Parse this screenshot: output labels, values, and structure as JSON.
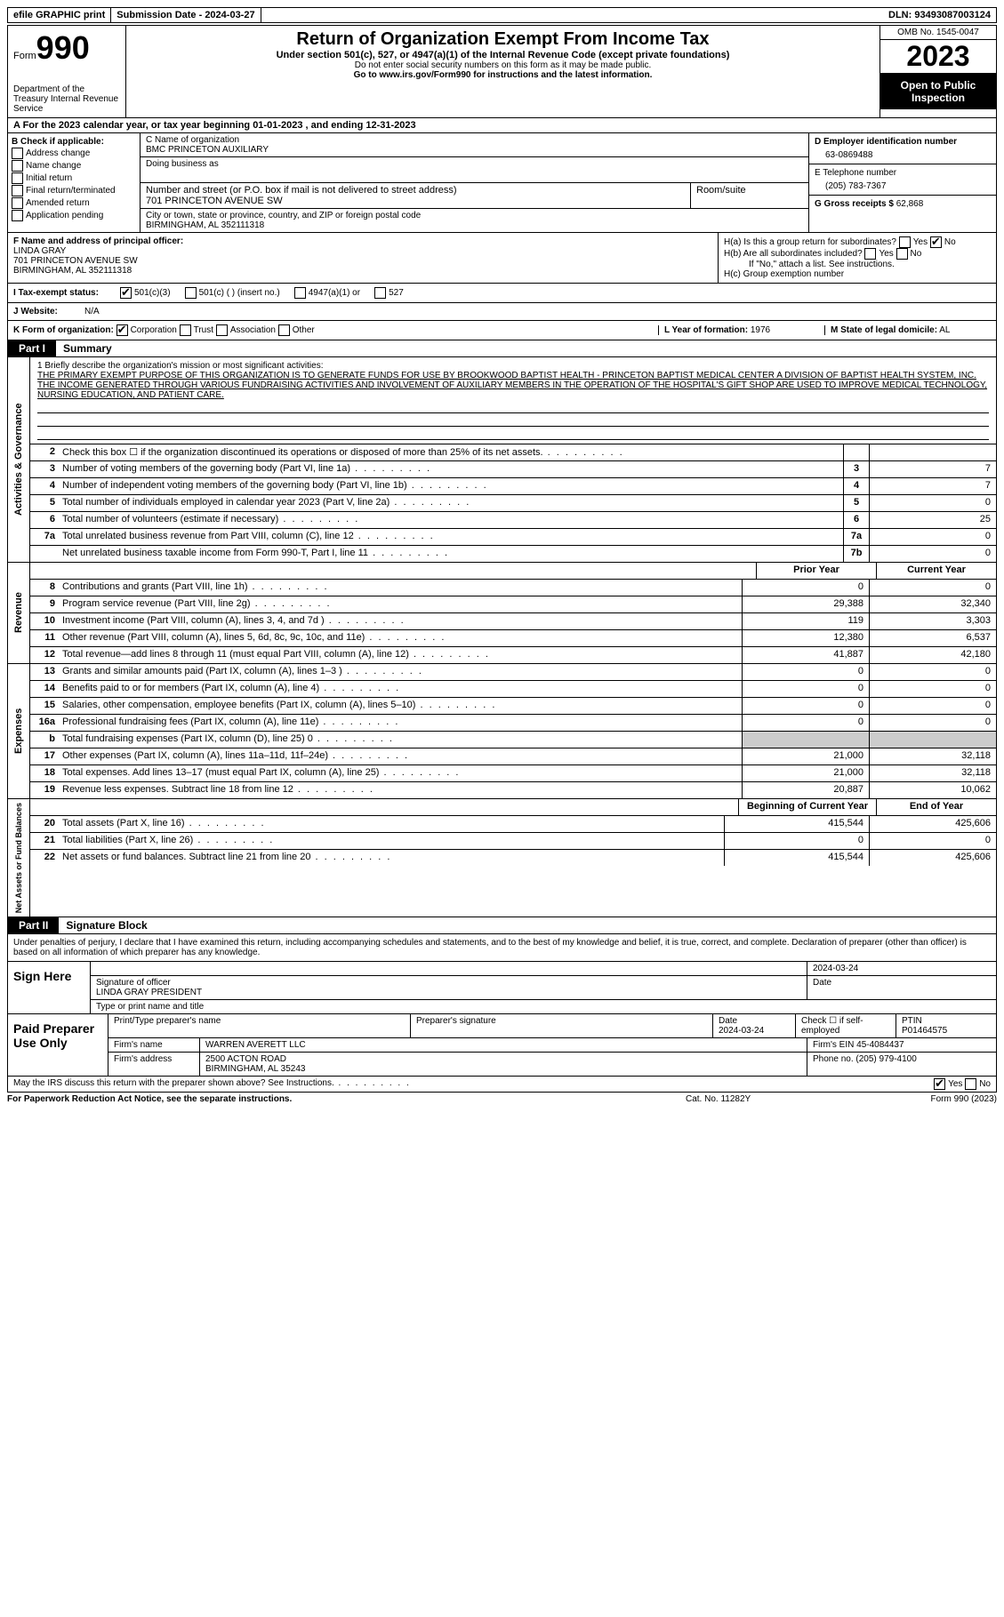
{
  "top": {
    "efile": "efile GRAPHIC print",
    "submission": "Submission Date - 2024-03-27",
    "dln": "DLN: 93493087003124"
  },
  "header": {
    "form_label": "Form",
    "form_num": "990",
    "dept": "Department of the Treasury\nInternal Revenue Service",
    "title": "Return of Organization Exempt From Income Tax",
    "sub": "Under section 501(c), 527, or 4947(a)(1) of the Internal Revenue Code (except private foundations)",
    "ssn": "Do not enter social security numbers on this form as it may be made public.",
    "goto": "Go to www.irs.gov/Form990 for instructions and the latest information.",
    "omb": "OMB No. 1545-0047",
    "year": "2023",
    "open": "Open to Public Inspection"
  },
  "A": "A For the 2023 calendar year, or tax year beginning 01-01-2023   , and ending 12-31-2023",
  "B": {
    "title": "B Check if applicable:",
    "items": [
      "Address change",
      "Name change",
      "Initial return",
      "Final return/terminated",
      "Amended return",
      "Application pending"
    ]
  },
  "C": {
    "name_label": "C Name of organization",
    "name": "BMC PRINCETON AUXILIARY",
    "dba_label": "Doing business as",
    "street_label": "Number and street (or P.O. box if mail is not delivered to street address)",
    "room_label": "Room/suite",
    "street": "701 PRINCETON AVENUE SW",
    "city_label": "City or town, state or province, country, and ZIP or foreign postal code",
    "city": "BIRMINGHAM, AL  352111318"
  },
  "D": {
    "label": "D Employer identification number",
    "value": "63-0869488"
  },
  "E": {
    "label": "E Telephone number",
    "value": "(205) 783-7367"
  },
  "G": {
    "label": "G Gross receipts $",
    "value": "62,868"
  },
  "F": {
    "label": "F  Name and address of principal officer:",
    "name": "LINDA GRAY",
    "street": "701 PRINCETON AVENUE SW",
    "city": "BIRMINGHAM, AL  352111318"
  },
  "H": {
    "a": "H(a)  Is this a group return for subordinates?",
    "b": "H(b)  Are all subordinates included?",
    "b2": "If \"No,\" attach a list. See instructions.",
    "c": "H(c)  Group exemption number"
  },
  "I": {
    "label": "I    Tax-exempt status:",
    "opts": [
      "501(c)(3)",
      "501(c) (  ) (insert no.)",
      "4947(a)(1) or",
      "527"
    ]
  },
  "J": {
    "label": "J    Website:",
    "value": "N/A"
  },
  "K": {
    "label": "K Form of organization:",
    "opts": [
      "Corporation",
      "Trust",
      "Association",
      "Other"
    ]
  },
  "L": {
    "label": "L Year of formation:",
    "value": "1976"
  },
  "M": {
    "label": "M State of legal domicile:",
    "value": "AL"
  },
  "part1": {
    "label": "Part I",
    "title": "Summary"
  },
  "mission": {
    "intro": "1    Briefly describe the organization's mission or most significant activities:",
    "text": "THE PRIMARY EXEMPT PURPOSE OF THIS ORGANIZATION IS TO GENERATE FUNDS FOR USE BY BROOKWOOD BAPTIST HEALTH - PRINCETON BAPTIST MEDICAL CENTER A DIVISION OF BAPTIST HEALTH SYSTEM, INC. THE INCOME GENERATED THROUGH VARIOUS FUNDRAISING ACTIVITIES AND INVOLVEMENT OF AUXILIARY MEMBERS IN THE OPERATION OF THE HOSPITAL'S GIFT SHOP ARE USED TO IMPROVE MEDICAL TECHNOLOGY, NURSING EDUCATION, AND PATIENT CARE."
  },
  "gov_lines": [
    {
      "n": "2",
      "d": "Check this box ☐  if the organization discontinued its operations or disposed of more than 25% of its net assets.",
      "b": "",
      "v": ""
    },
    {
      "n": "3",
      "d": "Number of voting members of the governing body (Part VI, line 1a)",
      "b": "3",
      "v": "7"
    },
    {
      "n": "4",
      "d": "Number of independent voting members of the governing body (Part VI, line 1b)",
      "b": "4",
      "v": "7"
    },
    {
      "n": "5",
      "d": "Total number of individuals employed in calendar year 2023 (Part V, line 2a)",
      "b": "5",
      "v": "0"
    },
    {
      "n": "6",
      "d": "Total number of volunteers (estimate if necessary)",
      "b": "6",
      "v": "25"
    },
    {
      "n": "7a",
      "d": "Total unrelated business revenue from Part VIII, column (C), line 12",
      "b": "7a",
      "v": "0"
    },
    {
      "n": "",
      "d": "Net unrelated business taxable income from Form 990-T, Part I, line 11",
      "b": "7b",
      "v": "0"
    }
  ],
  "col_headers": {
    "prior": "Prior Year",
    "current": "Current Year",
    "boy": "Beginning of Current Year",
    "eoy": "End of Year"
  },
  "rev_lines": [
    {
      "n": "8",
      "d": "Contributions and grants (Part VIII, line 1h)",
      "p": "0",
      "c": "0"
    },
    {
      "n": "9",
      "d": "Program service revenue (Part VIII, line 2g)",
      "p": "29,388",
      "c": "32,340"
    },
    {
      "n": "10",
      "d": "Investment income (Part VIII, column (A), lines 3, 4, and 7d )",
      "p": "119",
      "c": "3,303"
    },
    {
      "n": "11",
      "d": "Other revenue (Part VIII, column (A), lines 5, 6d, 8c, 9c, 10c, and 11e)",
      "p": "12,380",
      "c": "6,537"
    },
    {
      "n": "12",
      "d": "Total revenue—add lines 8 through 11 (must equal Part VIII, column (A), line 12)",
      "p": "41,887",
      "c": "42,180"
    }
  ],
  "exp_lines": [
    {
      "n": "13",
      "d": "Grants and similar amounts paid (Part IX, column (A), lines 1–3 )",
      "p": "0",
      "c": "0"
    },
    {
      "n": "14",
      "d": "Benefits paid to or for members (Part IX, column (A), line 4)",
      "p": "0",
      "c": "0"
    },
    {
      "n": "15",
      "d": "Salaries, other compensation, employee benefits (Part IX, column (A), lines 5–10)",
      "p": "0",
      "c": "0"
    },
    {
      "n": "16a",
      "d": "Professional fundraising fees (Part IX, column (A), line 11e)",
      "p": "0",
      "c": "0"
    },
    {
      "n": "b",
      "d": "Total fundraising expenses (Part IX, column (D), line 25) 0",
      "p": "grey",
      "c": "grey"
    },
    {
      "n": "17",
      "d": "Other expenses (Part IX, column (A), lines 11a–11d, 11f–24e)",
      "p": "21,000",
      "c": "32,118"
    },
    {
      "n": "18",
      "d": "Total expenses. Add lines 13–17 (must equal Part IX, column (A), line 25)",
      "p": "21,000",
      "c": "32,118"
    },
    {
      "n": "19",
      "d": "Revenue less expenses. Subtract line 18 from line 12",
      "p": "20,887",
      "c": "10,062"
    }
  ],
  "na_lines": [
    {
      "n": "20",
      "d": "Total assets (Part X, line 16)",
      "p": "415,544",
      "c": "425,606"
    },
    {
      "n": "21",
      "d": "Total liabilities (Part X, line 26)",
      "p": "0",
      "c": "0"
    },
    {
      "n": "22",
      "d": "Net assets or fund balances. Subtract line 21 from line 20",
      "p": "415,544",
      "c": "425,606"
    }
  ],
  "vtabs": {
    "gov": "Activities & Governance",
    "rev": "Revenue",
    "exp": "Expenses",
    "na": "Net Assets or Fund Balances"
  },
  "part2": {
    "label": "Part II",
    "title": "Signature Block"
  },
  "sig_intro": "Under penalties of perjury, I declare that I have examined this return, including accompanying schedules and statements, and to the best of my knowledge and belief, it is true, correct, and complete. Declaration of preparer (other than officer) is based on all information of which preparer has any knowledge.",
  "sign": {
    "here": "Sign Here",
    "date": "2024-03-24",
    "sig_label": "Signature of officer",
    "name": "LINDA GRAY PRESIDENT",
    "name_label": "Type or print name and title",
    "date_label": "Date"
  },
  "prep": {
    "left": "Paid Preparer Use Only",
    "h1": "Print/Type preparer's name",
    "h2": "Preparer's signature",
    "h3": "Date",
    "h3v": "2024-03-24",
    "h4": "Check ☐ if self-employed",
    "h5": "PTIN",
    "h5v": "P01464575",
    "firm_label": "Firm's name",
    "firm": "WARREN AVERETT LLC",
    "ein_label": "Firm's EIN",
    "ein": "45-4084437",
    "addr_label": "Firm's address",
    "addr": "2500 ACTON ROAD",
    "addr2": "BIRMINGHAM, AL  35243",
    "phone_label": "Phone no.",
    "phone": "(205) 979-4100"
  },
  "discuss": "May the IRS discuss this return with the preparer shown above? See Instructions.",
  "footer": {
    "l": "For Paperwork Reduction Act Notice, see the separate instructions.",
    "m": "Cat. No. 11282Y",
    "r": "Form 990 (2023)"
  }
}
